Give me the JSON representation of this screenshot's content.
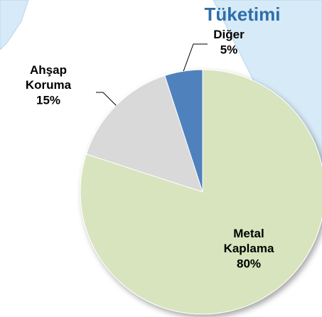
{
  "chart_data": {
    "type": "pie",
    "title": "Tüketimi",
    "categories": [
      "Metal Kaplama",
      "Ahşap Koruma",
      "Diğer"
    ],
    "values": [
      80,
      15,
      5
    ],
    "value_labels": [
      "80%",
      "15%",
      "5%"
    ],
    "colors": [
      "#d7e4bd",
      "#d9d9d9",
      "#4f81bd"
    ]
  }
}
